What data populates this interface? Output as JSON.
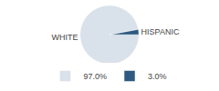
{
  "chart_data": {
    "type": "pie",
    "categories": [
      "WHITE",
      "HISPANIC"
    ],
    "values": [
      97,
      3
    ],
    "value_labels": [
      "97.0%",
      "3.0%"
    ],
    "colors": [
      "#d9e1ea",
      "#2e5a82"
    ],
    "legend": "bottom"
  }
}
